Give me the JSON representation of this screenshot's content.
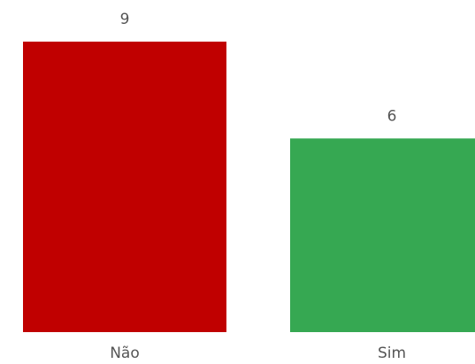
{
  "chart_data": {
    "type": "bar",
    "categories": [
      "Não",
      "Sim"
    ],
    "values": [
      9,
      6
    ],
    "colors": [
      "#c00000",
      "#36a852"
    ],
    "ylim": [
      0,
      9
    ]
  }
}
